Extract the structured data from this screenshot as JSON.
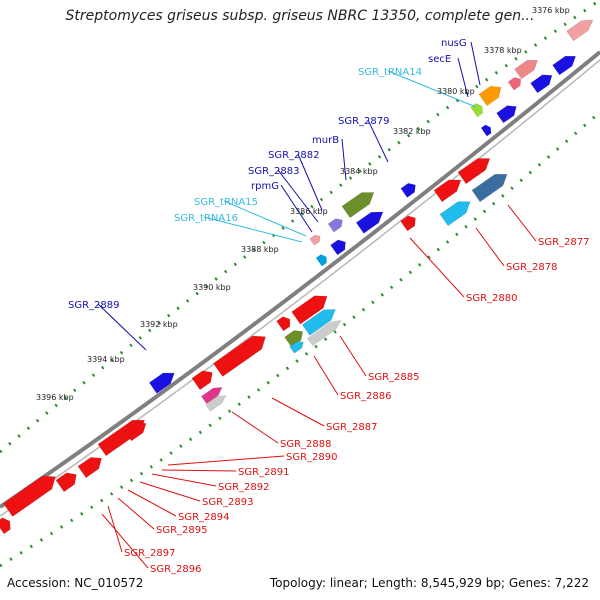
{
  "title": "Streptomyces griseus subsp. griseus NBRC 13350, complete gen...",
  "footer": {
    "accession": "Accession: NC_010572",
    "topology": "Topology: linear; Length: 8,545,929 bp; Genes: 7,222"
  },
  "colors": {
    "backbone": "#7f7f7f",
    "ticks": "#2e8b2e",
    "forward_label": "#1010b0",
    "rna_label": "#33bbdd",
    "reverse_label": "#dd1111"
  },
  "kbp_ticks": [
    "3376 kbp",
    "3378 kbp",
    "3380 kbp",
    "3382 kbp",
    "3384 kbp",
    "3386 kbp",
    "3388 kbp",
    "3390 kbp",
    "3392 kbp",
    "3394 kbp",
    "3396 kbp"
  ],
  "gene_labels": {
    "forward": [
      "nusG",
      "secE",
      "SGR_2879",
      "murB",
      "SGR_2882",
      "SGR_2883",
      "rpmG",
      "SGR_2889"
    ],
    "rna": [
      "SGR_tRNA14",
      "SGR_tRNA15",
      "SGR_tRNA16"
    ],
    "reverse": [
      "SGR_2877",
      "SGR_2878",
      "SGR_2880",
      "SGR_2885",
      "SGR_2886",
      "SGR_2887",
      "SGR_2888",
      "SGR_2890",
      "SGR_2891",
      "SGR_2892",
      "SGR_2893",
      "SGR_2894",
      "SGR_2895",
      "SGR_2896",
      "SGR_2897"
    ]
  }
}
